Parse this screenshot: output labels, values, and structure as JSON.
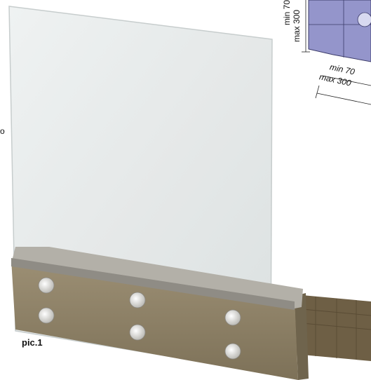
{
  "caption": "pic.1",
  "dimensions": {
    "vertical_min": "min 70",
    "vertical_max": "max 300",
    "horizontal_min": "min 70",
    "horizontal_max": "max 300"
  },
  "edge_label": "o",
  "colors": {
    "glass": "#dfe4e4",
    "cap_top": "#b6b3ab",
    "wall": "#8f8369",
    "bricks": "#7a6a50",
    "drawing_fill": "#8e8fc7",
    "bolt": "#ececea"
  }
}
